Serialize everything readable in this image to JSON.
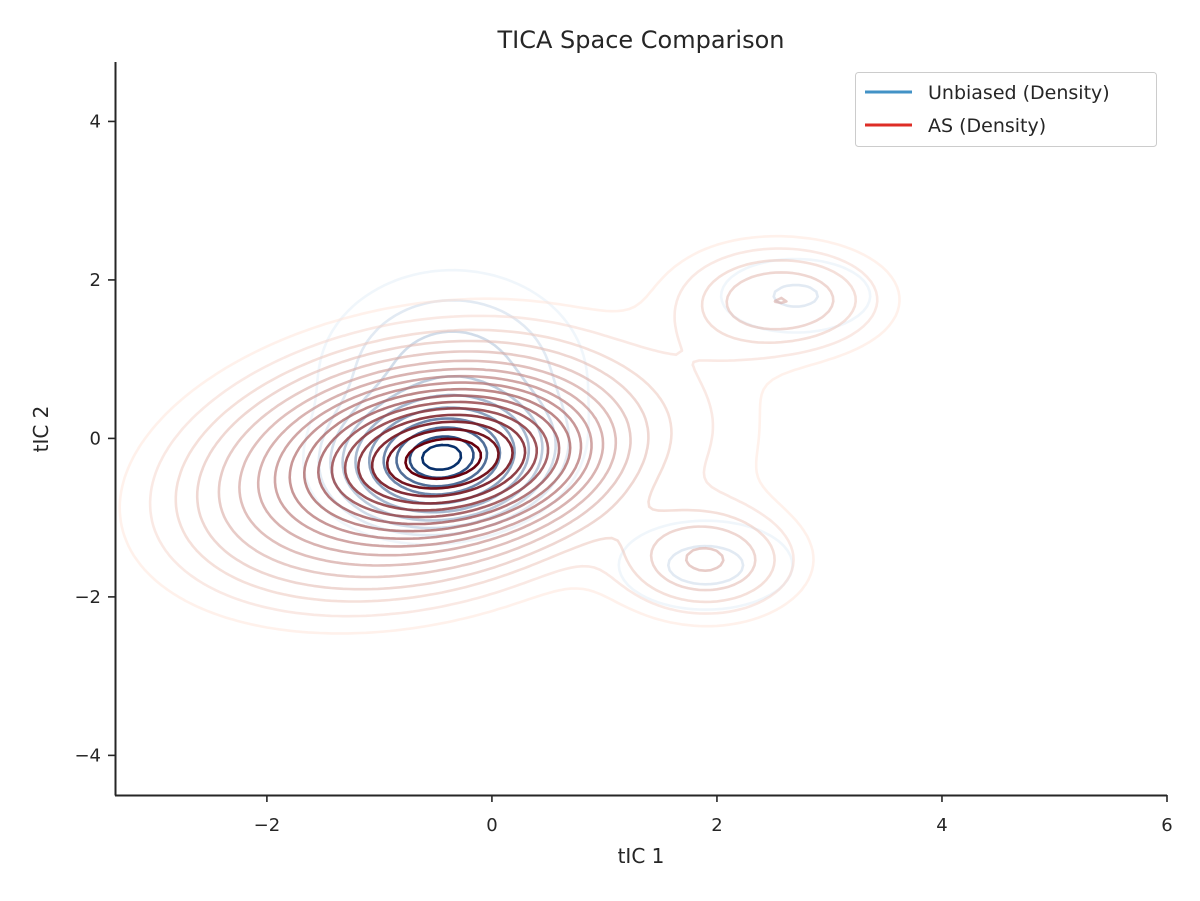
{
  "chart_data": {
    "type": "contour",
    "title": "TICA Space Comparison",
    "xlabel": "tIC 1",
    "ylabel": "tIC 2",
    "xlim": [
      -3.35,
      6.0
    ],
    "ylim": [
      -4.5,
      4.75
    ],
    "x_ticks": [
      -2,
      0,
      2,
      4,
      6
    ],
    "y_ticks": [
      -4,
      -2,
      0,
      2,
      4
    ],
    "x_tick_labels": [
      "−2",
      "0",
      "2",
      "4",
      "6"
    ],
    "y_tick_labels": [
      "−4",
      "−2",
      "0",
      "2",
      "4"
    ],
    "grid": false,
    "legend_position": "top-right",
    "legend": [
      "Unbiased (Density)",
      "AS (Density)"
    ],
    "series": [
      {
        "name": "Unbiased (Density)",
        "color": "#4292c6",
        "shade_light": "#deebf7",
        "shade_dark": "#08306b",
        "modes": [
          {
            "x": -0.45,
            "y": -0.25,
            "sx": 0.42,
            "sy": 0.38,
            "rho": 0.1,
            "weight": 1.0
          },
          {
            "x": -0.35,
            "y": 0.75,
            "sx": 0.65,
            "sy": 0.75,
            "rho": 0.0,
            "weight": 0.1
          },
          {
            "x": 2.7,
            "y": 1.8,
            "sx": 0.5,
            "sy": 0.35,
            "rho": 0.0,
            "weight": 0.045
          },
          {
            "x": 1.9,
            "y": -1.6,
            "sx": 0.55,
            "sy": 0.4,
            "rho": 0.0,
            "weight": 0.05
          },
          {
            "x": -2.2,
            "y": -3.6,
            "sx": 0.08,
            "sy": 0.03,
            "rho": 0.0,
            "weight": 0.01
          }
        ],
        "levels": [
          0.018,
          0.04,
          0.07,
          0.12,
          0.2,
          0.32,
          0.48,
          0.64,
          0.8,
          0.92
        ]
      },
      {
        "name": "AS (Density)",
        "color": "#de2d26",
        "shade_light": "#fee0d2",
        "shade_dark": "#67000d",
        "modes": [
          {
            "x": -0.4,
            "y": -0.25,
            "sx": 0.6,
            "sy": 0.45,
            "rho": 0.15,
            "weight": 1.0
          },
          {
            "x": -0.7,
            "y": -0.35,
            "sx": 1.05,
            "sy": 0.85,
            "rho": 0.25,
            "weight": 0.35
          },
          {
            "x": 2.6,
            "y": 1.75,
            "sx": 0.55,
            "sy": 0.42,
            "rho": 0.0,
            "weight": 0.09
          },
          {
            "x": 1.9,
            "y": -1.55,
            "sx": 0.5,
            "sy": 0.42,
            "rho": 0.0,
            "weight": 0.09
          },
          {
            "x": 2.0,
            "y": 0.1,
            "sx": 0.5,
            "sy": 1.3,
            "rho": 0.0,
            "weight": 0.015
          }
        ],
        "levels": [
          0.012,
          0.022,
          0.035,
          0.05,
          0.07,
          0.095,
          0.125,
          0.16,
          0.2,
          0.25,
          0.31,
          0.38,
          0.46,
          0.55,
          0.65,
          0.76,
          0.88
        ]
      }
    ]
  }
}
